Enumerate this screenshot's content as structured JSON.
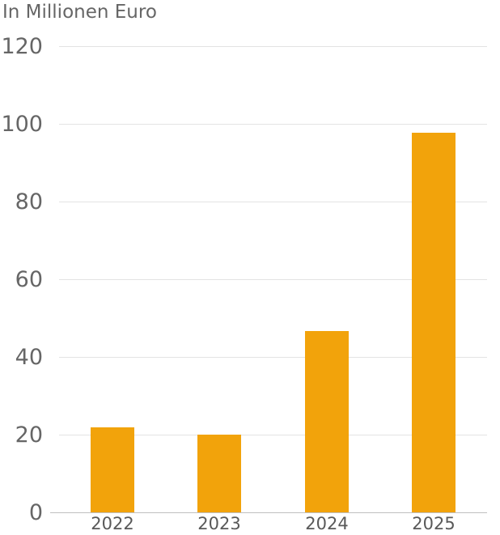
{
  "chart_data": {
    "type": "bar",
    "title": "In Millionen Euro",
    "categories": [
      "2022",
      "2023",
      "2024",
      "2025"
    ],
    "values": [
      21.8,
      20,
      46.6,
      97.8
    ],
    "xlabel": "",
    "ylabel": "In Millionen Euro",
    "ylim": [
      0,
      120
    ],
    "yticks": [
      0,
      20,
      40,
      60,
      80,
      100,
      120
    ],
    "grid": true,
    "legend": false,
    "bar_color": "#F2A30B",
    "text_color": "#666666",
    "grid_color": "#E3E3E3",
    "zero_line_color": "#BFBFBF"
  }
}
